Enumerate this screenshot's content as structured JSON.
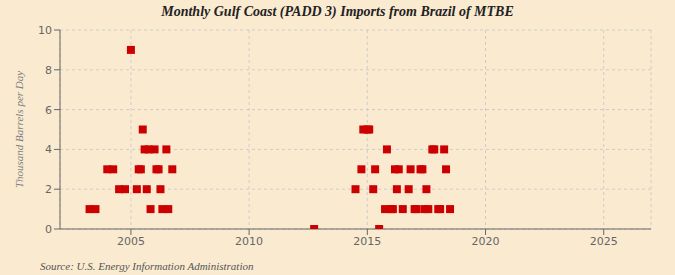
{
  "chart_data": {
    "type": "scatter",
    "title": "Monthly Gulf Coast (PADD 3) Imports from Brazil of MTBE",
    "ylabel": "Thousand Barrels per Day",
    "annotation": "Source: U.S. Energy Information Administration",
    "x": [
      2003.25,
      2003.5,
      2004.0,
      2004.25,
      2004.5,
      2004.75,
      2005.0,
      2005.25,
      2005.33,
      2005.42,
      2005.5,
      2005.58,
      2005.67,
      2005.75,
      2005.83,
      2006.0,
      2006.08,
      2006.17,
      2006.25,
      2006.33,
      2006.5,
      2006.58,
      2006.75,
      2012.75,
      2014.5,
      2014.75,
      2014.83,
      2015.0,
      2015.08,
      2015.25,
      2015.33,
      2015.5,
      2015.75,
      2015.83,
      2016.0,
      2016.08,
      2016.17,
      2016.25,
      2016.33,
      2016.5,
      2016.75,
      2016.83,
      2017.0,
      2017.08,
      2017.25,
      2017.33,
      2017.42,
      2017.5,
      2017.58,
      2017.75,
      2017.83,
      2018.0,
      2018.08,
      2018.25,
      2018.33,
      2018.5
    ],
    "values": [
      1,
      1,
      3,
      3,
      2,
      2,
      9,
      2,
      3,
      3,
      5,
      4,
      2,
      4,
      1,
      4,
      3,
      3,
      2,
      1,
      4,
      1,
      3,
      0,
      2,
      3,
      5,
      5,
      5,
      2,
      3,
      0,
      1,
      4,
      1,
      1,
      3,
      2,
      3,
      1,
      2,
      3,
      1,
      1,
      3,
      3,
      1,
      2,
      1,
      4,
      4,
      1,
      1,
      4,
      3,
      1
    ],
    "color": "#cc0000",
    "marker": "square",
    "xlim": [
      2002,
      2027
    ],
    "ylim": [
      0,
      10
    ],
    "xticks": [
      2005,
      2010,
      2015,
      2020,
      2025
    ],
    "yticks": [
      0,
      2,
      4,
      6,
      8,
      10
    ],
    "grid": true
  }
}
